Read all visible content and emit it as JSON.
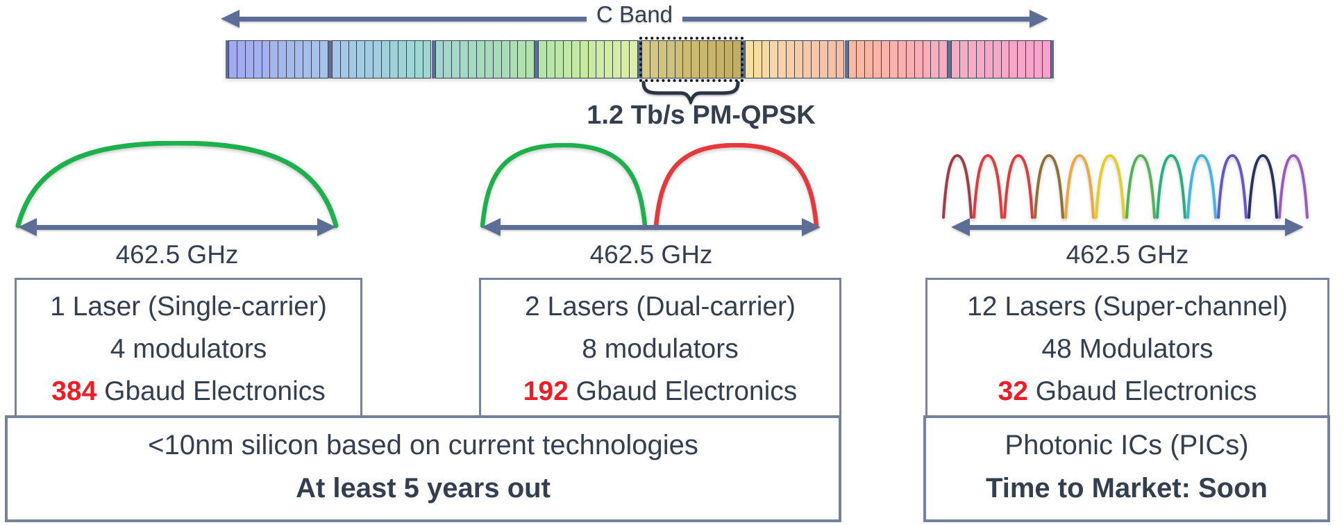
{
  "colors": {
    "slate_arrow": "#5c6e96",
    "box_border": "#74819f",
    "text": "#333f50",
    "red_value": "#ee1c24",
    "highlight_dash": "#15181d"
  },
  "c_band": {
    "label": "C Band",
    "annotation": "1.2 Tb/s PM-QPSK",
    "bar": {
      "groups": 8,
      "cells_per_group": 12,
      "highlighted_group": 5,
      "color_stops": [
        "#a2aaee",
        "#a6c3ec",
        "#9fd5d6",
        "#a8ddb5",
        "#cceba3",
        "#eef3a0",
        "#fbd4a4",
        "#f9b5a4",
        "#f9abc4",
        "#f6a3cb"
      ],
      "highlight_fill": [
        "#d8c980",
        "#bfae63"
      ]
    }
  },
  "sections": [
    {
      "id": "single-carrier",
      "bandwidth": "462.5 GHz",
      "arc_colors": [
        "#1db14c"
      ],
      "box": {
        "line1": "1 Laser (Single-carrier)",
        "line2": "4 modulators",
        "value": "384",
        "value_label": "Gbaud Electronics"
      }
    },
    {
      "id": "dual-carrier",
      "bandwidth": "462.5 GHz",
      "arc_colors": [
        "#1db14c",
        "#e6393d"
      ],
      "box": {
        "line1": "2 Lasers (Dual-carrier)",
        "line2": "8 modulators",
        "value": "192",
        "value_label": "Gbaud Electronics"
      }
    },
    {
      "id": "super-channel",
      "bandwidth": "462.5 GHz",
      "arc_colors": [
        "#a03c44",
        "#e23a3c",
        "#e23a3c",
        "#8f7034",
        "#efa73d",
        "#e3cd27",
        "#53b257",
        "#27ae7e",
        "#3fb4e6",
        "#6156cd",
        "#273361",
        "#9c59c4"
      ],
      "box": {
        "line1": "12 Lasers (Super-channel)",
        "line2": "48 Modulators",
        "value": "32",
        "value_label": "Gbaud Electronics"
      }
    }
  ],
  "footers": [
    {
      "line1": "<10nm silicon based on current technologies",
      "line2": "At least 5 years out"
    },
    {
      "line1": "Photonic ICs (PICs)",
      "line2": "Time to Market: Soon"
    }
  ]
}
